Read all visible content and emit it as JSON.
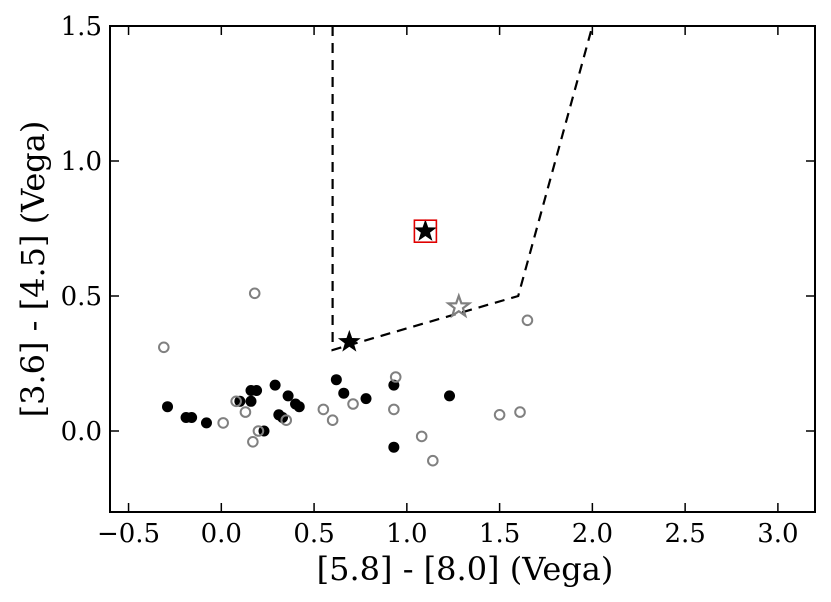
{
  "chart_data": {
    "type": "scatter",
    "title": "",
    "xlabel": "[5.8] - [8.0] (Vega)",
    "ylabel": "[3.6] - [4.5] (Vega)",
    "xlim": [
      -0.6,
      3.2
    ],
    "ylim": [
      -0.3,
      1.5
    ],
    "xticks": [
      -0.5,
      0.0,
      0.5,
      1.0,
      1.5,
      2.0,
      2.5,
      3.0
    ],
    "xtick_labels": [
      "−0.5",
      "0.0",
      "0.5",
      "1.0",
      "1.5",
      "2.0",
      "2.5",
      "3.0"
    ],
    "yticks": [
      0.0,
      0.5,
      1.0,
      1.5
    ],
    "ytick_labels": [
      "0.0",
      "0.5",
      "1.0",
      "1.5"
    ],
    "grid": false,
    "legend": "none",
    "colors": {
      "filled": "#000000",
      "open": "#808080",
      "highlight_box": "#e00000",
      "boundary": "#000000"
    },
    "series": [
      {
        "marker": "filled-circle",
        "points": [
          [
            -0.29,
            0.09
          ],
          [
            -0.19,
            0.05
          ],
          [
            -0.16,
            0.05
          ],
          [
            -0.08,
            0.03
          ],
          [
            0.1,
            0.11
          ],
          [
            0.16,
            0.15
          ],
          [
            0.19,
            0.15
          ],
          [
            0.16,
            0.11
          ],
          [
            0.23,
            0.0
          ],
          [
            0.29,
            0.17
          ],
          [
            0.31,
            0.06
          ],
          [
            0.33,
            0.05
          ],
          [
            0.36,
            0.13
          ],
          [
            0.4,
            0.1
          ],
          [
            0.42,
            0.09
          ],
          [
            0.62,
            0.19
          ],
          [
            0.66,
            0.14
          ],
          [
            0.78,
            0.12
          ],
          [
            0.93,
            0.17
          ],
          [
            0.93,
            -0.06
          ],
          [
            1.23,
            0.13
          ]
        ]
      },
      {
        "marker": "open-circle",
        "points": [
          [
            -0.31,
            0.31
          ],
          [
            0.18,
            0.51
          ],
          [
            0.01,
            0.03
          ],
          [
            0.08,
            0.11
          ],
          [
            0.13,
            0.07
          ],
          [
            0.17,
            -0.04
          ],
          [
            0.2,
            0.0
          ],
          [
            0.35,
            0.04
          ],
          [
            0.55,
            0.08
          ],
          [
            0.6,
            0.04
          ],
          [
            0.71,
            0.1
          ],
          [
            0.93,
            0.08
          ],
          [
            0.94,
            0.2
          ],
          [
            1.08,
            -0.02
          ],
          [
            1.14,
            -0.11
          ],
          [
            1.5,
            0.06
          ],
          [
            1.61,
            0.07
          ],
          [
            1.65,
            0.41
          ]
        ]
      },
      {
        "marker": "filled-star",
        "points": [
          [
            0.69,
            0.33
          ],
          [
            1.1,
            0.74
          ]
        ]
      },
      {
        "marker": "open-star",
        "points": [
          [
            1.28,
            0.46
          ]
        ]
      }
    ],
    "highlight": {
      "x": 1.1,
      "y": 0.74
    },
    "boundary_line": [
      [
        0.6,
        1.5
      ],
      [
        0.6,
        0.3
      ],
      [
        1.6,
        0.5
      ],
      [
        2.0,
        1.5
      ]
    ]
  }
}
